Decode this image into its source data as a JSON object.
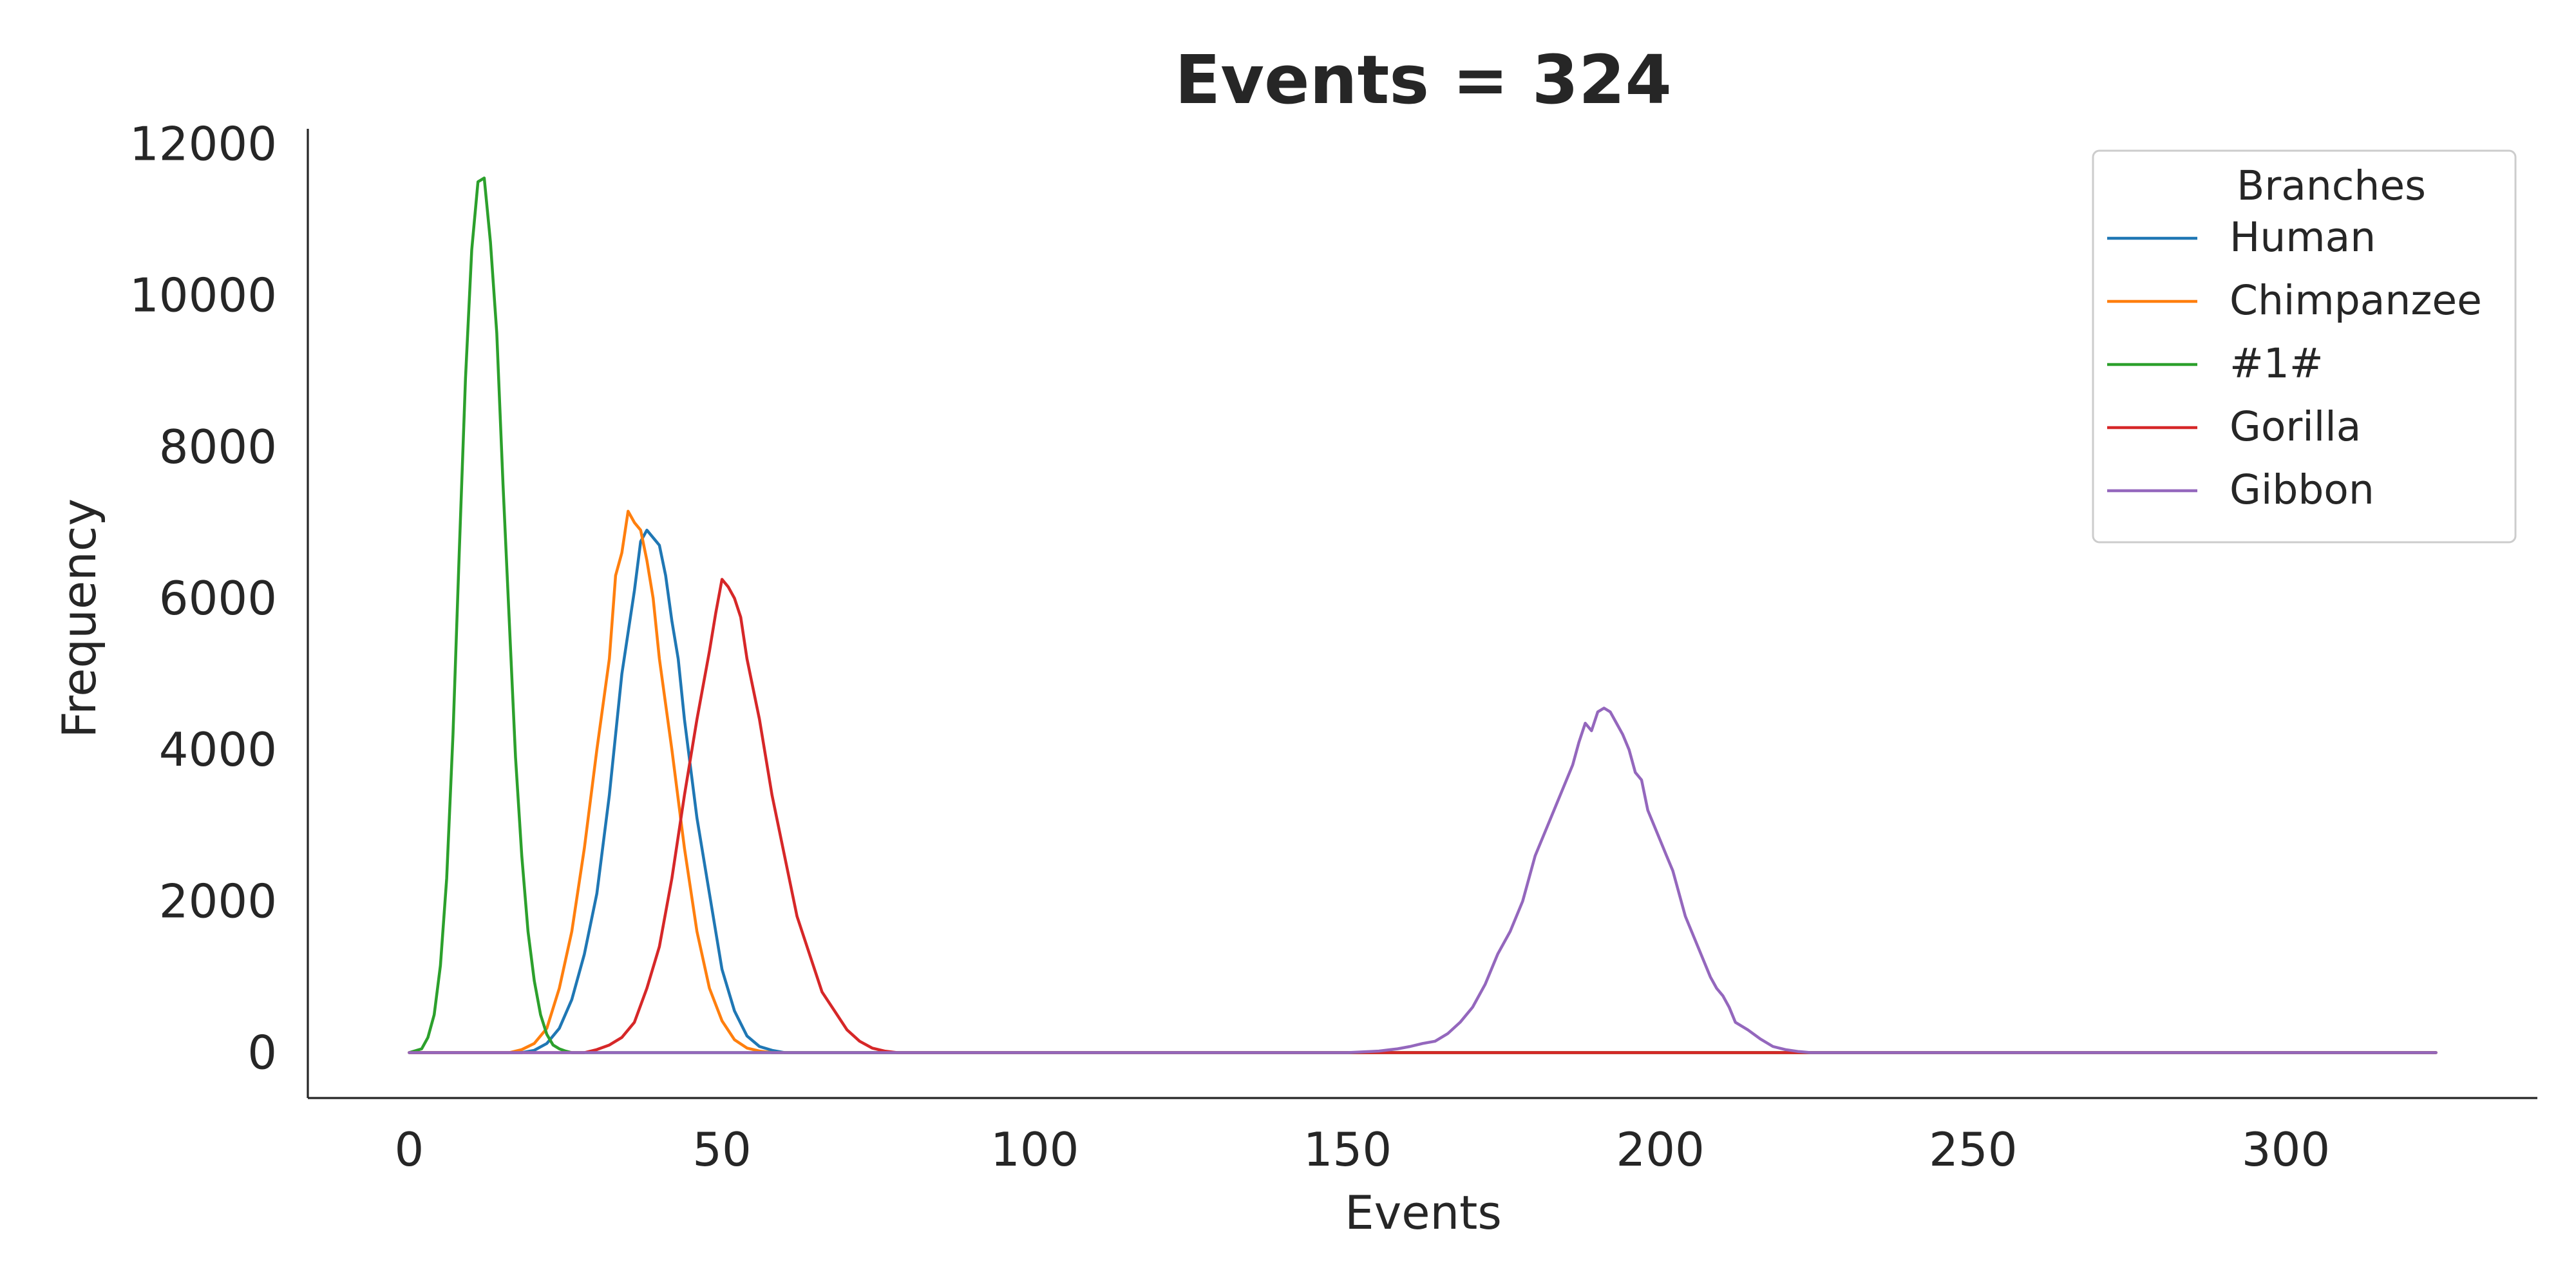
{
  "chart_data": {
    "type": "line",
    "title": "Events = 324",
    "xlabel": "Events",
    "ylabel": "Frequency",
    "xlim": [
      -16.2,
      340.2
    ],
    "ylim": [
      -600,
      12200
    ],
    "xticks": [
      "0",
      "50",
      "100",
      "150",
      "200",
      "250",
      "300"
    ],
    "xtick_values": [
      0,
      50,
      100,
      150,
      200,
      250,
      300
    ],
    "yticks": [
      "0",
      "2000",
      "4000",
      "6000",
      "8000",
      "10000",
      "12000"
    ],
    "ytick_values": [
      0,
      2000,
      4000,
      6000,
      8000,
      10000,
      12000
    ],
    "grid": false,
    "legend": {
      "title": "Branches",
      "placement": "upper right"
    },
    "x_range": [
      0,
      324
    ],
    "series": [
      {
        "name": "Human",
        "color": "#1f77b4",
        "points": [
          [
            0,
            0
          ],
          [
            18,
            0
          ],
          [
            20,
            30
          ],
          [
            22,
            120
          ],
          [
            24,
            320
          ],
          [
            26,
            700
          ],
          [
            28,
            1300
          ],
          [
            30,
            2100
          ],
          [
            32,
            3400
          ],
          [
            34,
            5000
          ],
          [
            36,
            6100
          ],
          [
            37,
            6750
          ],
          [
            38,
            6900
          ],
          [
            39,
            6800
          ],
          [
            40,
            6700
          ],
          [
            41,
            6300
          ],
          [
            42,
            5700
          ],
          [
            43,
            5200
          ],
          [
            44,
            4400
          ],
          [
            46,
            3100
          ],
          [
            48,
            2100
          ],
          [
            50,
            1100
          ],
          [
            52,
            550
          ],
          [
            54,
            220
          ],
          [
            56,
            80
          ],
          [
            58,
            30
          ],
          [
            60,
            0
          ],
          [
            324,
            0
          ]
        ]
      },
      {
        "name": "Chimpanzee",
        "color": "#ff7f0e",
        "points": [
          [
            0,
            0
          ],
          [
            16,
            0
          ],
          [
            18,
            40
          ],
          [
            20,
            120
          ],
          [
            22,
            320
          ],
          [
            24,
            850
          ],
          [
            26,
            1600
          ],
          [
            28,
            2700
          ],
          [
            30,
            4000
          ],
          [
            32,
            5200
          ],
          [
            33,
            6300
          ],
          [
            34,
            6600
          ],
          [
            35,
            7150
          ],
          [
            36,
            7000
          ],
          [
            37,
            6900
          ],
          [
            38,
            6500
          ],
          [
            39,
            6000
          ],
          [
            40,
            5200
          ],
          [
            42,
            4000
          ],
          [
            44,
            2700
          ],
          [
            46,
            1600
          ],
          [
            48,
            850
          ],
          [
            50,
            420
          ],
          [
            52,
            170
          ],
          [
            54,
            60
          ],
          [
            56,
            20
          ],
          [
            58,
            0
          ],
          [
            324,
            0
          ]
        ]
      },
      {
        "name": "#1#",
        "color": "#2ca02c",
        "points": [
          [
            0,
            0
          ],
          [
            2,
            50
          ],
          [
            3,
            200
          ],
          [
            4,
            500
          ],
          [
            5,
            1150
          ],
          [
            6,
            2300
          ],
          [
            7,
            4200
          ],
          [
            8,
            6600
          ],
          [
            9,
            8900
          ],
          [
            10,
            10600
          ],
          [
            11,
            11500
          ],
          [
            12,
            11550
          ],
          [
            13,
            10700
          ],
          [
            14,
            9500
          ],
          [
            15,
            7500
          ],
          [
            16,
            5700
          ],
          [
            17,
            3900
          ],
          [
            18,
            2600
          ],
          [
            19,
            1600
          ],
          [
            20,
            950
          ],
          [
            21,
            500
          ],
          [
            22,
            240
          ],
          [
            23,
            100
          ],
          [
            24,
            50
          ],
          [
            25,
            20
          ],
          [
            26,
            0
          ],
          [
            324,
            0
          ]
        ]
      },
      {
        "name": "Gorilla",
        "color": "#d62728",
        "points": [
          [
            0,
            0
          ],
          [
            28,
            0
          ],
          [
            30,
            40
          ],
          [
            32,
            100
          ],
          [
            34,
            200
          ],
          [
            36,
            400
          ],
          [
            38,
            850
          ],
          [
            40,
            1400
          ],
          [
            42,
            2300
          ],
          [
            44,
            3400
          ],
          [
            46,
            4400
          ],
          [
            48,
            5300
          ],
          [
            49,
            5800
          ],
          [
            50,
            6250
          ],
          [
            51,
            6150
          ],
          [
            52,
            6000
          ],
          [
            53,
            5750
          ],
          [
            54,
            5200
          ],
          [
            56,
            4400
          ],
          [
            58,
            3400
          ],
          [
            60,
            2600
          ],
          [
            62,
            1800
          ],
          [
            64,
            1300
          ],
          [
            66,
            800
          ],
          [
            68,
            550
          ],
          [
            70,
            300
          ],
          [
            72,
            150
          ],
          [
            74,
            60
          ],
          [
            76,
            20
          ],
          [
            78,
            0
          ],
          [
            324,
            0
          ]
        ]
      },
      {
        "name": "Gibbon",
        "color": "#9467bd",
        "points": [
          [
            0,
            0
          ],
          [
            150,
            0
          ],
          [
            155,
            20
          ],
          [
            158,
            50
          ],
          [
            160,
            80
          ],
          [
            162,
            120
          ],
          [
            164,
            150
          ],
          [
            166,
            250
          ],
          [
            168,
            400
          ],
          [
            170,
            600
          ],
          [
            172,
            900
          ],
          [
            174,
            1300
          ],
          [
            176,
            1600
          ],
          [
            178,
            2000
          ],
          [
            180,
            2600
          ],
          [
            182,
            3000
          ],
          [
            184,
            3400
          ],
          [
            186,
            3800
          ],
          [
            187,
            4100
          ],
          [
            188,
            4350
          ],
          [
            189,
            4250
          ],
          [
            190,
            4500
          ],
          [
            191,
            4550
          ],
          [
            192,
            4500
          ],
          [
            193,
            4350
          ],
          [
            194,
            4200
          ],
          [
            195,
            4000
          ],
          [
            196,
            3700
          ],
          [
            197,
            3600
          ],
          [
            198,
            3200
          ],
          [
            200,
            2800
          ],
          [
            201,
            2600
          ],
          [
            202,
            2400
          ],
          [
            204,
            1800
          ],
          [
            206,
            1400
          ],
          [
            208,
            1000
          ],
          [
            209,
            850
          ],
          [
            210,
            750
          ],
          [
            211,
            600
          ],
          [
            212,
            400
          ],
          [
            214,
            300
          ],
          [
            216,
            180
          ],
          [
            218,
            80
          ],
          [
            220,
            40
          ],
          [
            222,
            15
          ],
          [
            224,
            0
          ],
          [
            324,
            0
          ]
        ]
      }
    ]
  }
}
